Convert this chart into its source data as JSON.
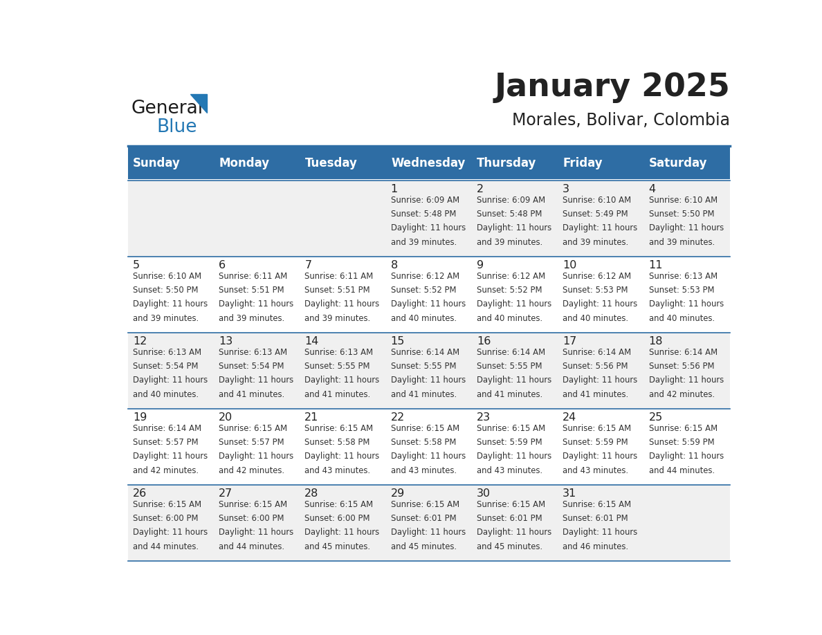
{
  "title": "January 2025",
  "subtitle": "Morales, Bolivar, Colombia",
  "header_bg_color": "#2E6DA4",
  "header_text_color": "#FFFFFF",
  "days_of_week": [
    "Sunday",
    "Monday",
    "Tuesday",
    "Wednesday",
    "Thursday",
    "Friday",
    "Saturday"
  ],
  "row_bg_even": "#F0F0F0",
  "row_bg_odd": "#FFFFFF",
  "cell_text_color": "#333333",
  "day_num_color": "#222222",
  "separator_color": "#2E6DA4",
  "background_color": "#FFFFFF",
  "logo_general_color": "#1A1A1A",
  "logo_blue_color": "#2478B4",
  "calendar_data": [
    [
      null,
      null,
      null,
      {
        "day": 1,
        "sunrise": "6:09 AM",
        "sunset": "5:48 PM",
        "daylight": "11 hours and 39 minutes."
      },
      {
        "day": 2,
        "sunrise": "6:09 AM",
        "sunset": "5:48 PM",
        "daylight": "11 hours and 39 minutes."
      },
      {
        "day": 3,
        "sunrise": "6:10 AM",
        "sunset": "5:49 PM",
        "daylight": "11 hours and 39 minutes."
      },
      {
        "day": 4,
        "sunrise": "6:10 AM",
        "sunset": "5:50 PM",
        "daylight": "11 hours and 39 minutes."
      }
    ],
    [
      {
        "day": 5,
        "sunrise": "6:10 AM",
        "sunset": "5:50 PM",
        "daylight": "11 hours and 39 minutes."
      },
      {
        "day": 6,
        "sunrise": "6:11 AM",
        "sunset": "5:51 PM",
        "daylight": "11 hours and 39 minutes."
      },
      {
        "day": 7,
        "sunrise": "6:11 AM",
        "sunset": "5:51 PM",
        "daylight": "11 hours and 39 minutes."
      },
      {
        "day": 8,
        "sunrise": "6:12 AM",
        "sunset": "5:52 PM",
        "daylight": "11 hours and 40 minutes."
      },
      {
        "day": 9,
        "sunrise": "6:12 AM",
        "sunset": "5:52 PM",
        "daylight": "11 hours and 40 minutes."
      },
      {
        "day": 10,
        "sunrise": "6:12 AM",
        "sunset": "5:53 PM",
        "daylight": "11 hours and 40 minutes."
      },
      {
        "day": 11,
        "sunrise": "6:13 AM",
        "sunset": "5:53 PM",
        "daylight": "11 hours and 40 minutes."
      }
    ],
    [
      {
        "day": 12,
        "sunrise": "6:13 AM",
        "sunset": "5:54 PM",
        "daylight": "11 hours and 40 minutes."
      },
      {
        "day": 13,
        "sunrise": "6:13 AM",
        "sunset": "5:54 PM",
        "daylight": "11 hours and 41 minutes."
      },
      {
        "day": 14,
        "sunrise": "6:13 AM",
        "sunset": "5:55 PM",
        "daylight": "11 hours and 41 minutes."
      },
      {
        "day": 15,
        "sunrise": "6:14 AM",
        "sunset": "5:55 PM",
        "daylight": "11 hours and 41 minutes."
      },
      {
        "day": 16,
        "sunrise": "6:14 AM",
        "sunset": "5:55 PM",
        "daylight": "11 hours and 41 minutes."
      },
      {
        "day": 17,
        "sunrise": "6:14 AM",
        "sunset": "5:56 PM",
        "daylight": "11 hours and 41 minutes."
      },
      {
        "day": 18,
        "sunrise": "6:14 AM",
        "sunset": "5:56 PM",
        "daylight": "11 hours and 42 minutes."
      }
    ],
    [
      {
        "day": 19,
        "sunrise": "6:14 AM",
        "sunset": "5:57 PM",
        "daylight": "11 hours and 42 minutes."
      },
      {
        "day": 20,
        "sunrise": "6:15 AM",
        "sunset": "5:57 PM",
        "daylight": "11 hours and 42 minutes."
      },
      {
        "day": 21,
        "sunrise": "6:15 AM",
        "sunset": "5:58 PM",
        "daylight": "11 hours and 43 minutes."
      },
      {
        "day": 22,
        "sunrise": "6:15 AM",
        "sunset": "5:58 PM",
        "daylight": "11 hours and 43 minutes."
      },
      {
        "day": 23,
        "sunrise": "6:15 AM",
        "sunset": "5:59 PM",
        "daylight": "11 hours and 43 minutes."
      },
      {
        "day": 24,
        "sunrise": "6:15 AM",
        "sunset": "5:59 PM",
        "daylight": "11 hours and 43 minutes."
      },
      {
        "day": 25,
        "sunrise": "6:15 AM",
        "sunset": "5:59 PM",
        "daylight": "11 hours and 44 minutes."
      }
    ],
    [
      {
        "day": 26,
        "sunrise": "6:15 AM",
        "sunset": "6:00 PM",
        "daylight": "11 hours and 44 minutes."
      },
      {
        "day": 27,
        "sunrise": "6:15 AM",
        "sunset": "6:00 PM",
        "daylight": "11 hours and 44 minutes."
      },
      {
        "day": 28,
        "sunrise": "6:15 AM",
        "sunset": "6:00 PM",
        "daylight": "11 hours and 45 minutes."
      },
      {
        "day": 29,
        "sunrise": "6:15 AM",
        "sunset": "6:01 PM",
        "daylight": "11 hours and 45 minutes."
      },
      {
        "day": 30,
        "sunrise": "6:15 AM",
        "sunset": "6:01 PM",
        "daylight": "11 hours and 45 minutes."
      },
      {
        "day": 31,
        "sunrise": "6:15 AM",
        "sunset": "6:01 PM",
        "daylight": "11 hours and 46 minutes."
      },
      null
    ]
  ]
}
